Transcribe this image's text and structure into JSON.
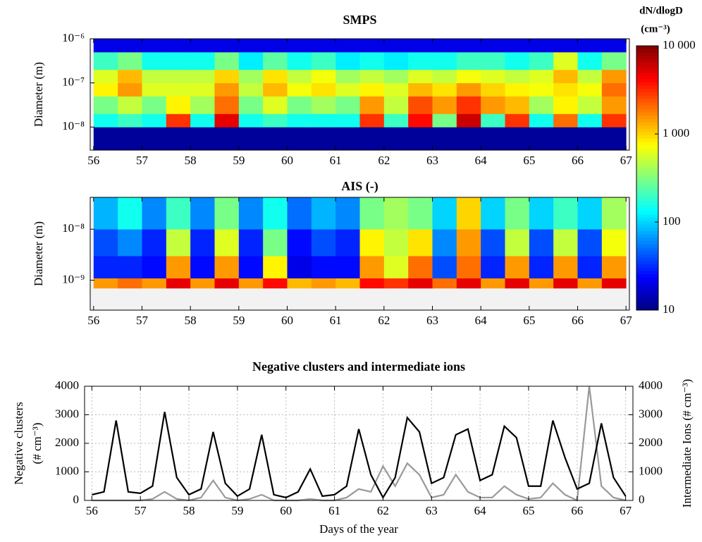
{
  "chart_data": [
    {
      "type": "heatmap",
      "title": "SMPS",
      "ylabel": "Diameter (m)",
      "log_y": true,
      "xlim": [
        55.93,
        67.07
      ],
      "xticks": [
        56,
        57,
        58,
        59,
        60,
        61,
        62,
        63,
        64,
        65,
        66,
        67
      ],
      "ylim": [
        3e-09,
        1e-06
      ],
      "yticks": [
        {
          "value": 1e-06,
          "label": "10⁻⁶"
        },
        {
          "value": 1e-07,
          "label": "10⁻⁷"
        },
        {
          "value": 1e-08,
          "label": "10⁻⁸"
        }
      ],
      "xbins": [
        56,
        56.5,
        57,
        57.5,
        58,
        58.5,
        59,
        59.5,
        60,
        60.5,
        61,
        61.5,
        62,
        62.5,
        63,
        63.5,
        64,
        64.5,
        65,
        65.5,
        66,
        66.5,
        67
      ],
      "ybins": [
        3e-09,
        1e-08,
        2e-08,
        5e-08,
        1e-07,
        2e-07,
        5e-07,
        1e-06
      ],
      "values": [
        [
          12,
          12,
          12,
          12,
          12,
          12,
          12,
          12,
          12,
          12,
          12,
          12,
          12,
          12,
          12,
          12,
          12,
          12,
          12,
          12,
          12,
          12
        ],
        [
          150,
          200,
          150,
          3000,
          150,
          5000,
          150,
          200,
          150,
          150,
          150,
          3000,
          200,
          4000,
          300,
          6000,
          200,
          3000,
          150,
          2000,
          150,
          3000
        ],
        [
          300,
          500,
          300,
          800,
          400,
          2000,
          300,
          600,
          300,
          400,
          300,
          1500,
          500,
          2500,
          1500,
          3000,
          1500,
          1200,
          400,
          800,
          500,
          1500
        ],
        [
          800,
          1500,
          600,
          600,
          600,
          1500,
          500,
          1200,
          700,
          900,
          600,
          800,
          600,
          1200,
          900,
          1500,
          1000,
          800,
          700,
          900,
          700,
          2000
        ],
        [
          600,
          1200,
          500,
          500,
          500,
          1000,
          400,
          900,
          500,
          700,
          400,
          500,
          400,
          600,
          500,
          700,
          600,
          500,
          600,
          1200,
          500,
          1500
        ],
        [
          200,
          300,
          150,
          150,
          150,
          300,
          120,
          250,
          150,
          200,
          120,
          150,
          120,
          150,
          150,
          200,
          200,
          150,
          200,
          600,
          150,
          300
        ],
        [
          20,
          20,
          20,
          20,
          20,
          20,
          20,
          20,
          20,
          20,
          20,
          20,
          20,
          20,
          20,
          20,
          20,
          20,
          20,
          20,
          20,
          20
        ]
      ],
      "colorbar": {
        "title": "dN/dlogD",
        "unit": "(cm⁻³)",
        "log": true,
        "lim": [
          10,
          10000
        ],
        "ticks": [
          {
            "value": 10000,
            "label": "10 000"
          },
          {
            "value": 1000,
            "label": "1 000"
          },
          100,
          10
        ]
      }
    },
    {
      "type": "heatmap",
      "title": "AIS (-)",
      "ylabel": "Diameter (m)",
      "log_y": true,
      "xlim": [
        55.93,
        67.07
      ],
      "xticks": [
        56,
        57,
        58,
        59,
        60,
        61,
        62,
        63,
        64,
        65,
        66,
        67
      ],
      "ylim": [
        2.6e-10,
        4.2e-08
      ],
      "yticks": [
        {
          "value": 1e-08,
          "label": "10⁻⁸"
        },
        {
          "value": 1e-09,
          "label": "10⁻⁹"
        }
      ],
      "xbins": [
        56,
        56.5,
        57,
        57.5,
        58,
        58.5,
        59,
        59.5,
        60,
        60.5,
        61,
        61.5,
        62,
        62.5,
        63,
        63.5,
        64,
        64.5,
        65,
        65.5,
        66,
        66.5,
        67
      ],
      "ybins": [
        2.6e-10,
        7e-10,
        1.1e-09,
        3e-09,
        1e-08,
        4.2e-08
      ],
      "values": [
        [
          null,
          null,
          null,
          null,
          null,
          null,
          null,
          null,
          null,
          null,
          null,
          null,
          null,
          null,
          null,
          null,
          null,
          null,
          null,
          null,
          null,
          null
        ],
        [
          1500,
          2000,
          1500,
          5000,
          1500,
          5000,
          1500,
          4000,
          1200,
          1500,
          1200,
          4000,
          3000,
          5000,
          2000,
          5000,
          1500,
          5000,
          1500,
          5000,
          1500,
          5000
        ],
        [
          30,
          30,
          25,
          1500,
          25,
          1500,
          25,
          800,
          20,
          25,
          25,
          1500,
          600,
          2000,
          40,
          2000,
          30,
          1500,
          30,
          1500,
          30,
          1500
        ],
        [
          40,
          60,
          30,
          500,
          30,
          600,
          30,
          300,
          25,
          40,
          30,
          800,
          500,
          900,
          60,
          1500,
          40,
          500,
          40,
          500,
          40,
          700
        ],
        [
          80,
          150,
          60,
          200,
          60,
          300,
          60,
          150,
          50,
          80,
          60,
          300,
          400,
          300,
          100,
          1000,
          100,
          300,
          100,
          200,
          100,
          400
        ]
      ]
    },
    {
      "type": "line",
      "title": "Negative clusters and intermediate ions",
      "xlabel": "Days of the year",
      "ylabel": [
        "Negative clusters",
        "(# cm⁻³)"
      ],
      "y2label": "Intermediate Ions (# cm⁻³)",
      "grid": true,
      "xlim": [
        55.85,
        67.15
      ],
      "xticks": [
        56,
        57,
        58,
        59,
        60,
        61,
        62,
        63,
        64,
        65,
        66,
        67
      ],
      "ylim": [
        0,
        4000
      ],
      "yticks": [
        0,
        1000,
        2000,
        3000,
        4000
      ],
      "y2lim": [
        0,
        4000
      ],
      "y2ticks": [
        0,
        1000,
        2000,
        3000,
        4000
      ],
      "x": [
        56,
        56.25,
        56.5,
        56.75,
        57,
        57.25,
        57.5,
        57.75,
        58,
        58.25,
        58.5,
        58.75,
        59,
        59.25,
        59.5,
        59.75,
        60,
        60.25,
        60.5,
        60.75,
        61,
        61.25,
        61.5,
        61.75,
        62,
        62.25,
        62.5,
        62.75,
        63,
        63.25,
        63.5,
        63.75,
        64,
        64.25,
        64.5,
        64.75,
        65,
        65.25,
        65.5,
        65.75,
        66,
        66.25,
        66.5,
        66.75,
        67
      ],
      "series": [
        {
          "color": "#000000",
          "values": [
            200,
            300,
            2800,
            300,
            250,
            500,
            3100,
            800,
            200,
            400,
            2400,
            600,
            150,
            400,
            2300,
            200,
            100,
            300,
            1100,
            150,
            200,
            500,
            2500,
            900,
            100,
            800,
            2900,
            2400,
            600,
            800,
            2300,
            2500,
            700,
            900,
            2600,
            2200,
            500,
            500,
            2800,
            1500,
            400,
            600,
            2700,
            800,
            150
          ]
        },
        {
          "color": "#999999",
          "axis": "y2",
          "values": [
            0,
            0,
            0,
            0,
            0,
            50,
            300,
            50,
            0,
            100,
            700,
            100,
            0,
            50,
            200,
            0,
            0,
            0,
            50,
            0,
            0,
            100,
            400,
            300,
            1200,
            500,
            1300,
            900,
            100,
            200,
            900,
            300,
            100,
            100,
            500,
            200,
            50,
            100,
            600,
            200,
            0,
            4000,
            500,
            100,
            0
          ]
        }
      ]
    }
  ]
}
